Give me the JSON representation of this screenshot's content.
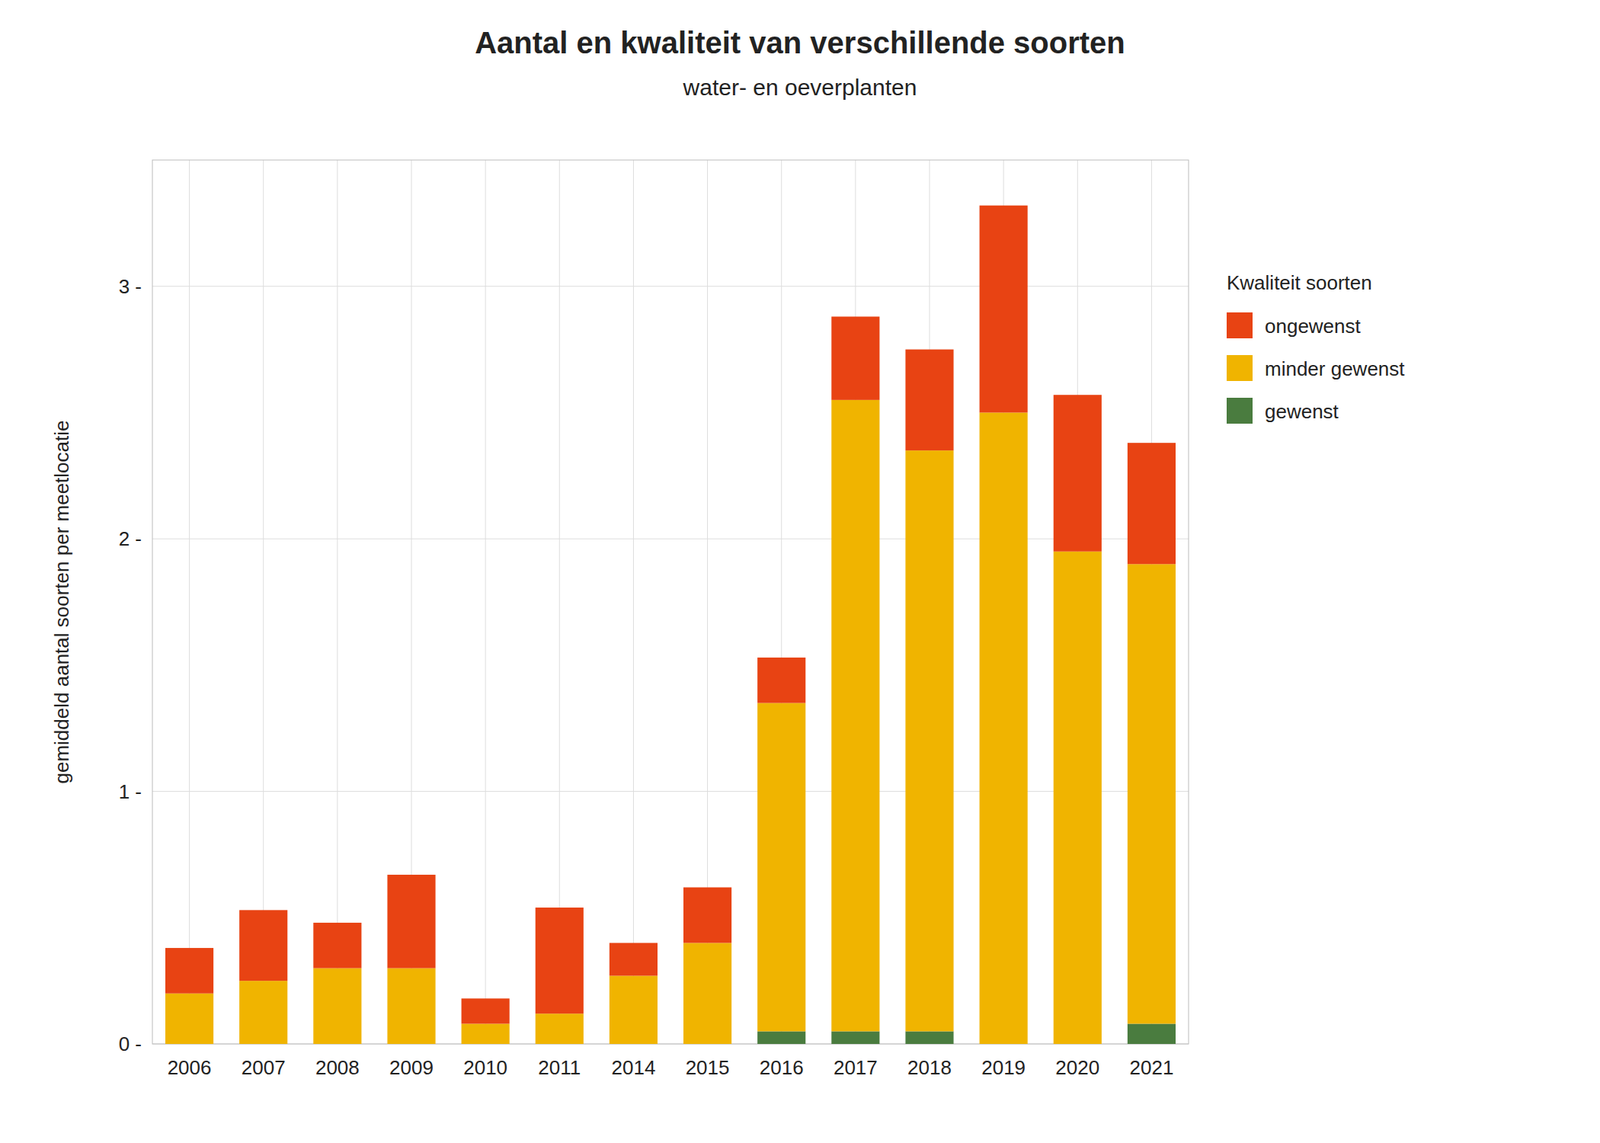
{
  "chart_data": {
    "type": "bar",
    "stacked": true,
    "title": "Aantal en kwaliteit van verschillende soorten",
    "subtitle": "water- en oeverplanten",
    "y_label": "gemiddeld aantal soorten per meetlocatie",
    "legend_title": "Kwaliteit soorten",
    "categories": [
      "2006",
      "2007",
      "2008",
      "2009",
      "2010",
      "2011",
      "2014",
      "2015",
      "2016",
      "2017",
      "2018",
      "2019",
      "2020",
      "2021"
    ],
    "series": [
      {
        "name": "gewenst",
        "color": "#4a7c3f",
        "values": [
          0.0,
          0.0,
          0.0,
          0.0,
          0.0,
          0.0,
          0.0,
          0.0,
          0.05,
          0.05,
          0.05,
          0.0,
          0.0,
          0.08
        ]
      },
      {
        "name": "minder gewenst",
        "color": "#f0b400",
        "values": [
          0.2,
          0.25,
          0.3,
          0.3,
          0.08,
          0.12,
          0.27,
          0.4,
          1.3,
          2.5,
          2.3,
          2.5,
          1.95,
          1.82
        ]
      },
      {
        "name": "ongewenst",
        "color": "#e84313",
        "values": [
          0.18,
          0.28,
          0.18,
          0.37,
          0.1,
          0.42,
          0.13,
          0.22,
          0.18,
          0.33,
          0.4,
          0.82,
          0.62,
          0.48
        ]
      }
    ],
    "ylim": [
      0,
      3.5
    ],
    "yticks": [
      {
        "value": 0,
        "label": "0 -"
      },
      {
        "value": 1,
        "label": "1 -"
      },
      {
        "value": 2,
        "label": "2 -"
      },
      {
        "value": 3,
        "label": "3 -"
      }
    ],
    "grid": true,
    "legend": "right"
  }
}
